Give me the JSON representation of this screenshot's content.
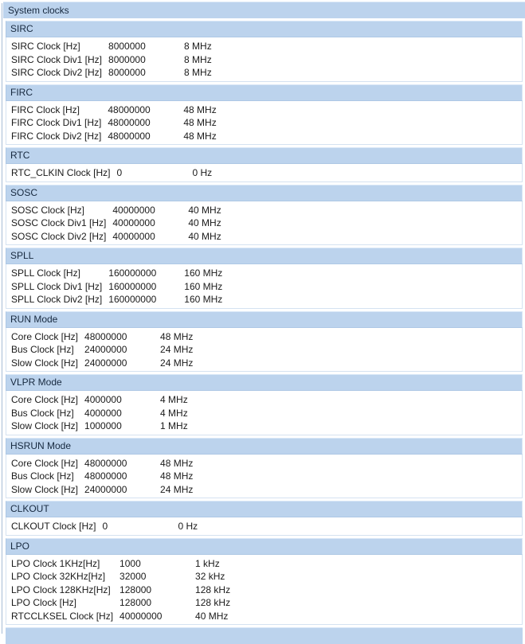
{
  "panel": {
    "title": "System clocks"
  },
  "colors": {
    "header_bg": "#bcd3ed",
    "header_border_light": "#d9e7f7",
    "header_border_dark": "#aec8e5",
    "section_border": "#d5e2f1",
    "panel_line": "#a7bcd6",
    "header_text": "#17293f",
    "row_text": "#1a1a1a",
    "page_bg": "#ffffff"
  },
  "sections": [
    {
      "name": "SIRC",
      "rows": [
        {
          "label": "SIRC Clock [Hz]",
          "value": "8000000",
          "display": "8 MHz"
        },
        {
          "label": "SIRC Clock Div1 [Hz]",
          "value": "8000000",
          "display": "8 MHz"
        },
        {
          "label": "SIRC Clock Div2 [Hz]",
          "value": "8000000",
          "display": "8 MHz"
        }
      ]
    },
    {
      "name": "FIRC",
      "rows": [
        {
          "label": "FIRC Clock [Hz]",
          "value": "48000000",
          "display": "48 MHz"
        },
        {
          "label": "FIRC Clock Div1 [Hz]",
          "value": "48000000",
          "display": "48 MHz"
        },
        {
          "label": "FIRC Clock Div2 [Hz]",
          "value": "48000000",
          "display": "48 MHz"
        }
      ]
    },
    {
      "name": "RTC",
      "rows": [
        {
          "label": "RTC_CLKIN Clock [Hz]",
          "value": "0",
          "display": "0 Hz"
        }
      ]
    },
    {
      "name": "SOSC",
      "rows": [
        {
          "label": "SOSC Clock [Hz]",
          "value": "40000000",
          "display": "40 MHz"
        },
        {
          "label": "SOSC Clock Div1 [Hz]",
          "value": "40000000",
          "display": "40 MHz"
        },
        {
          "label": "SOSC Clock Div2 [Hz]",
          "value": "40000000",
          "display": "40 MHz"
        }
      ]
    },
    {
      "name": "SPLL",
      "rows": [
        {
          "label": "SPLL Clock [Hz]",
          "value": "160000000",
          "display": "160 MHz"
        },
        {
          "label": "SPLL Clock Div1 [Hz]",
          "value": "160000000",
          "display": "160 MHz"
        },
        {
          "label": "SPLL Clock Div2 [Hz]",
          "value": "160000000",
          "display": "160 MHz"
        }
      ]
    },
    {
      "name": "RUN Mode",
      "rows": [
        {
          "label": "Core Clock [Hz]",
          "value": "48000000",
          "display": "48 MHz"
        },
        {
          "label": "Bus Clock [Hz]",
          "value": "24000000",
          "display": "24 MHz"
        },
        {
          "label": "Slow Clock [Hz]",
          "value": "24000000",
          "display": "24 MHz"
        }
      ]
    },
    {
      "name": "VLPR Mode",
      "rows": [
        {
          "label": "Core Clock [Hz]",
          "value": "4000000",
          "display": "4 MHz"
        },
        {
          "label": "Bus Clock [Hz]",
          "value": "4000000",
          "display": "4 MHz"
        },
        {
          "label": "Slow Clock [Hz]",
          "value": "1000000",
          "display": "1 MHz"
        }
      ]
    },
    {
      "name": "HSRUN Mode",
      "rows": [
        {
          "label": "Core Clock [Hz]",
          "value": "48000000",
          "display": "48 MHz"
        },
        {
          "label": "Bus Clock [Hz]",
          "value": "48000000",
          "display": "48 MHz"
        },
        {
          "label": "Slow Clock [Hz]",
          "value": "24000000",
          "display": "24 MHz"
        }
      ]
    },
    {
      "name": "CLKOUT",
      "rows": [
        {
          "label": "CLKOUT Clock [Hz]",
          "value": "0",
          "display": "0 Hz"
        }
      ]
    },
    {
      "name": "LPO",
      "rows": [
        {
          "label": "LPO Clock 1KHz[Hz]",
          "value": "1000",
          "display": "1 kHz"
        },
        {
          "label": "LPO Clock 32KHz[Hz]",
          "value": "32000",
          "display": "32 kHz"
        },
        {
          "label": "LPO Clock 128KHz[Hz]",
          "value": "128000",
          "display": "128 kHz"
        },
        {
          "label": "LPO Clock [Hz]",
          "value": "128000",
          "display": "128 kHz"
        },
        {
          "label": "RTCCLKSEL Clock [Hz]",
          "value": "40000000",
          "display": "40 MHz"
        }
      ]
    }
  ]
}
